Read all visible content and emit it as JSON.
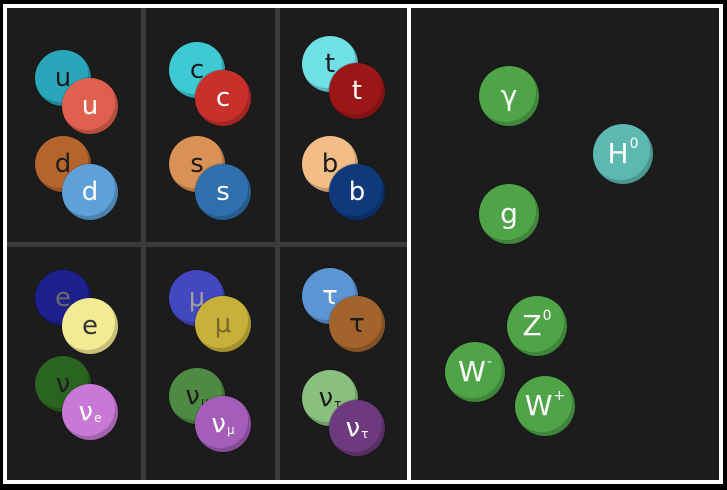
{
  "colors": {
    "panel_bg": "#1c1c1c",
    "border": "#ffffff",
    "grid": "#3a3a3a"
  },
  "fermions": [
    {
      "name": "up",
      "back": {
        "label": "u",
        "color": "#2aa6bb",
        "text": "#1c1c1c"
      },
      "front": {
        "label": "u",
        "color": "#e0604f",
        "text": "#ffffff"
      }
    },
    {
      "name": "down",
      "back": {
        "label": "d",
        "color": "#b4652c",
        "text": "#1c1c1c"
      },
      "front": {
        "label": "d",
        "color": "#5ea0d8",
        "text": "#ffffff"
      }
    },
    {
      "name": "charm",
      "back": {
        "label": "c",
        "color": "#3ec9d4",
        "text": "#1c1c1c"
      },
      "front": {
        "label": "c",
        "color": "#c92f2b",
        "text": "#ffffff"
      }
    },
    {
      "name": "strange",
      "back": {
        "label": "s",
        "color": "#d99155",
        "text": "#1c1c1c"
      },
      "front": {
        "label": "s",
        "color": "#2f6fae",
        "text": "#ffffff"
      }
    },
    {
      "name": "top",
      "back": {
        "label": "t",
        "color": "#6fe0e6",
        "text": "#1c1c1c"
      },
      "front": {
        "label": "t",
        "color": "#9b1717",
        "text": "#ffffff"
      }
    },
    {
      "name": "bottom",
      "back": {
        "label": "b",
        "color": "#f2bd86",
        "text": "#1c1c1c"
      },
      "front": {
        "label": "b",
        "color": "#0e3a7c",
        "text": "#ffffff"
      }
    },
    {
      "name": "electron",
      "back": {
        "label": "e",
        "color": "#1c1f8c",
        "text": "#6a6a6a"
      },
      "front": {
        "label": "e",
        "color": "#f3eb94",
        "text": "#333333"
      }
    },
    {
      "name": "electron-neutrino",
      "back": {
        "label": "ν",
        "color": "#2b6320",
        "text": "#1c1c1c"
      },
      "front": {
        "label": "ν",
        "sub": "e",
        "color": "#c879d6",
        "text": "#ffffff"
      }
    },
    {
      "name": "muon",
      "back": {
        "label": "μ",
        "color": "#4347c0",
        "text": "#a0a0a0"
      },
      "front": {
        "label": "μ",
        "color": "#c7b13a",
        "text": "#7a6a2a"
      }
    },
    {
      "name": "muon-neutrino",
      "back": {
        "label": "ν",
        "sub": "μ",
        "color": "#4f8a44",
        "text": "#1c1c1c"
      },
      "front": {
        "label": "ν",
        "sub": "μ",
        "color": "#a55dba",
        "text": "#ffffff"
      }
    },
    {
      "name": "tau",
      "back": {
        "label": "τ",
        "color": "#5c95d4",
        "text": "#ffffff"
      },
      "front": {
        "label": "τ",
        "color": "#a2632c",
        "text": "#1c1c1c"
      }
    },
    {
      "name": "tau-neutrino",
      "back": {
        "label": "ν",
        "sub": "τ",
        "color": "#8ac07f",
        "text": "#1c1c1c"
      },
      "front": {
        "label": "ν",
        "sub": "τ",
        "color": "#6e3a7f",
        "text": "#ffffff"
      }
    }
  ],
  "bosons": [
    {
      "name": "photon",
      "label": "γ",
      "color": "#4ea447"
    },
    {
      "name": "higgs",
      "label": "H",
      "sup": "0",
      "color": "#5db8b0"
    },
    {
      "name": "gluon",
      "label": "g",
      "color": "#4ea447"
    },
    {
      "name": "z-boson",
      "label": "Z",
      "sup": "0",
      "color": "#4ea447"
    },
    {
      "name": "w-minus-boson",
      "label": "W",
      "sup": "-",
      "color": "#4ea447"
    },
    {
      "name": "w-plus-boson",
      "label": "W",
      "sup": "+",
      "color": "#4ea447"
    }
  ]
}
